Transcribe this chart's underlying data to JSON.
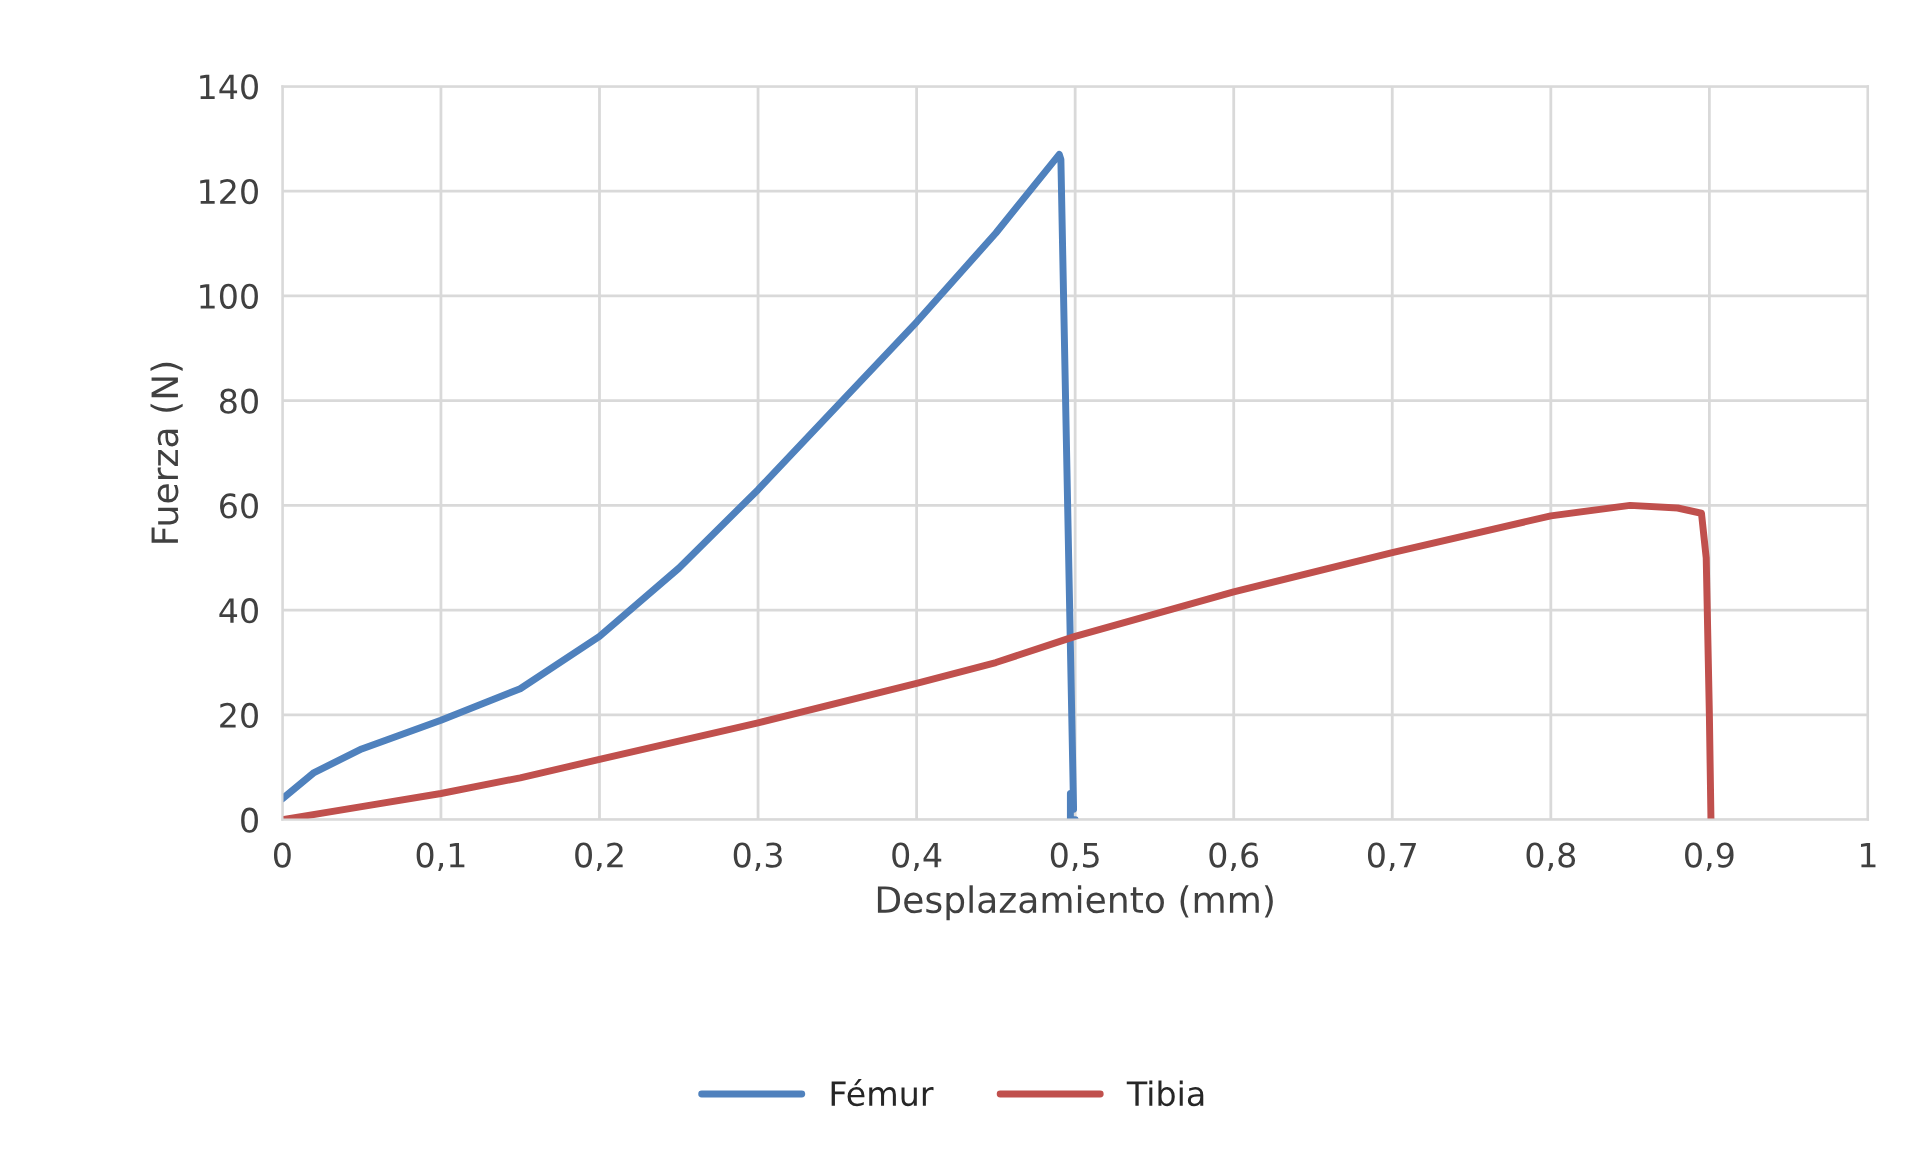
{
  "chart_data": {
    "type": "line",
    "xlabel": "Desplazamiento (mm)",
    "ylabel": "Fuerza (N)",
    "xlim": [
      0,
      1
    ],
    "ylim": [
      0,
      140
    ],
    "xticks": [
      0,
      {
        "value": 0.1,
        "label": "0,1"
      },
      {
        "value": 0.2,
        "label": "0,2"
      },
      {
        "value": 0.3,
        "label": "0,3"
      },
      {
        "value": 0.4,
        "label": "0,4"
      },
      {
        "value": 0.5,
        "label": "0,5"
      },
      {
        "value": 0.6,
        "label": "0,6"
      },
      {
        "value": 0.7,
        "label": "0,7"
      },
      {
        "value": 0.8,
        "label": "0,8"
      },
      {
        "value": 0.9,
        "label": "0,9"
      },
      1
    ],
    "yticks": [
      0,
      20,
      40,
      60,
      80,
      100,
      120,
      140
    ],
    "grid": true,
    "legend": "bottom",
    "marker": "none",
    "line_style": "solid",
    "series": [
      {
        "name": "Fémur",
        "color": "#4f81bd",
        "x": [
          0,
          0.02,
          0.05,
          0.1,
          0.15,
          0.2,
          0.25,
          0.3,
          0.35,
          0.4,
          0.45,
          0.49,
          0.491,
          0.499,
          0.497,
          0.497,
          0.5
        ],
        "values": [
          4,
          9,
          13.5,
          19,
          25,
          35,
          48,
          63,
          79,
          95,
          112,
          127,
          126,
          2,
          5,
          0,
          0
        ]
      },
      {
        "name": "Tibia",
        "color": "#c0504d",
        "x": [
          0,
          0.05,
          0.1,
          0.15,
          0.2,
          0.3,
          0.4,
          0.45,
          0.5,
          0.6,
          0.7,
          0.8,
          0.85,
          0.88,
          0.895,
          0.898,
          0.9,
          0.901
        ],
        "values": [
          0,
          2.5,
          5,
          8,
          11.5,
          18.5,
          26,
          30,
          35,
          43.5,
          51,
          58,
          60,
          59.5,
          58.5,
          50,
          20,
          0
        ]
      }
    ]
  }
}
